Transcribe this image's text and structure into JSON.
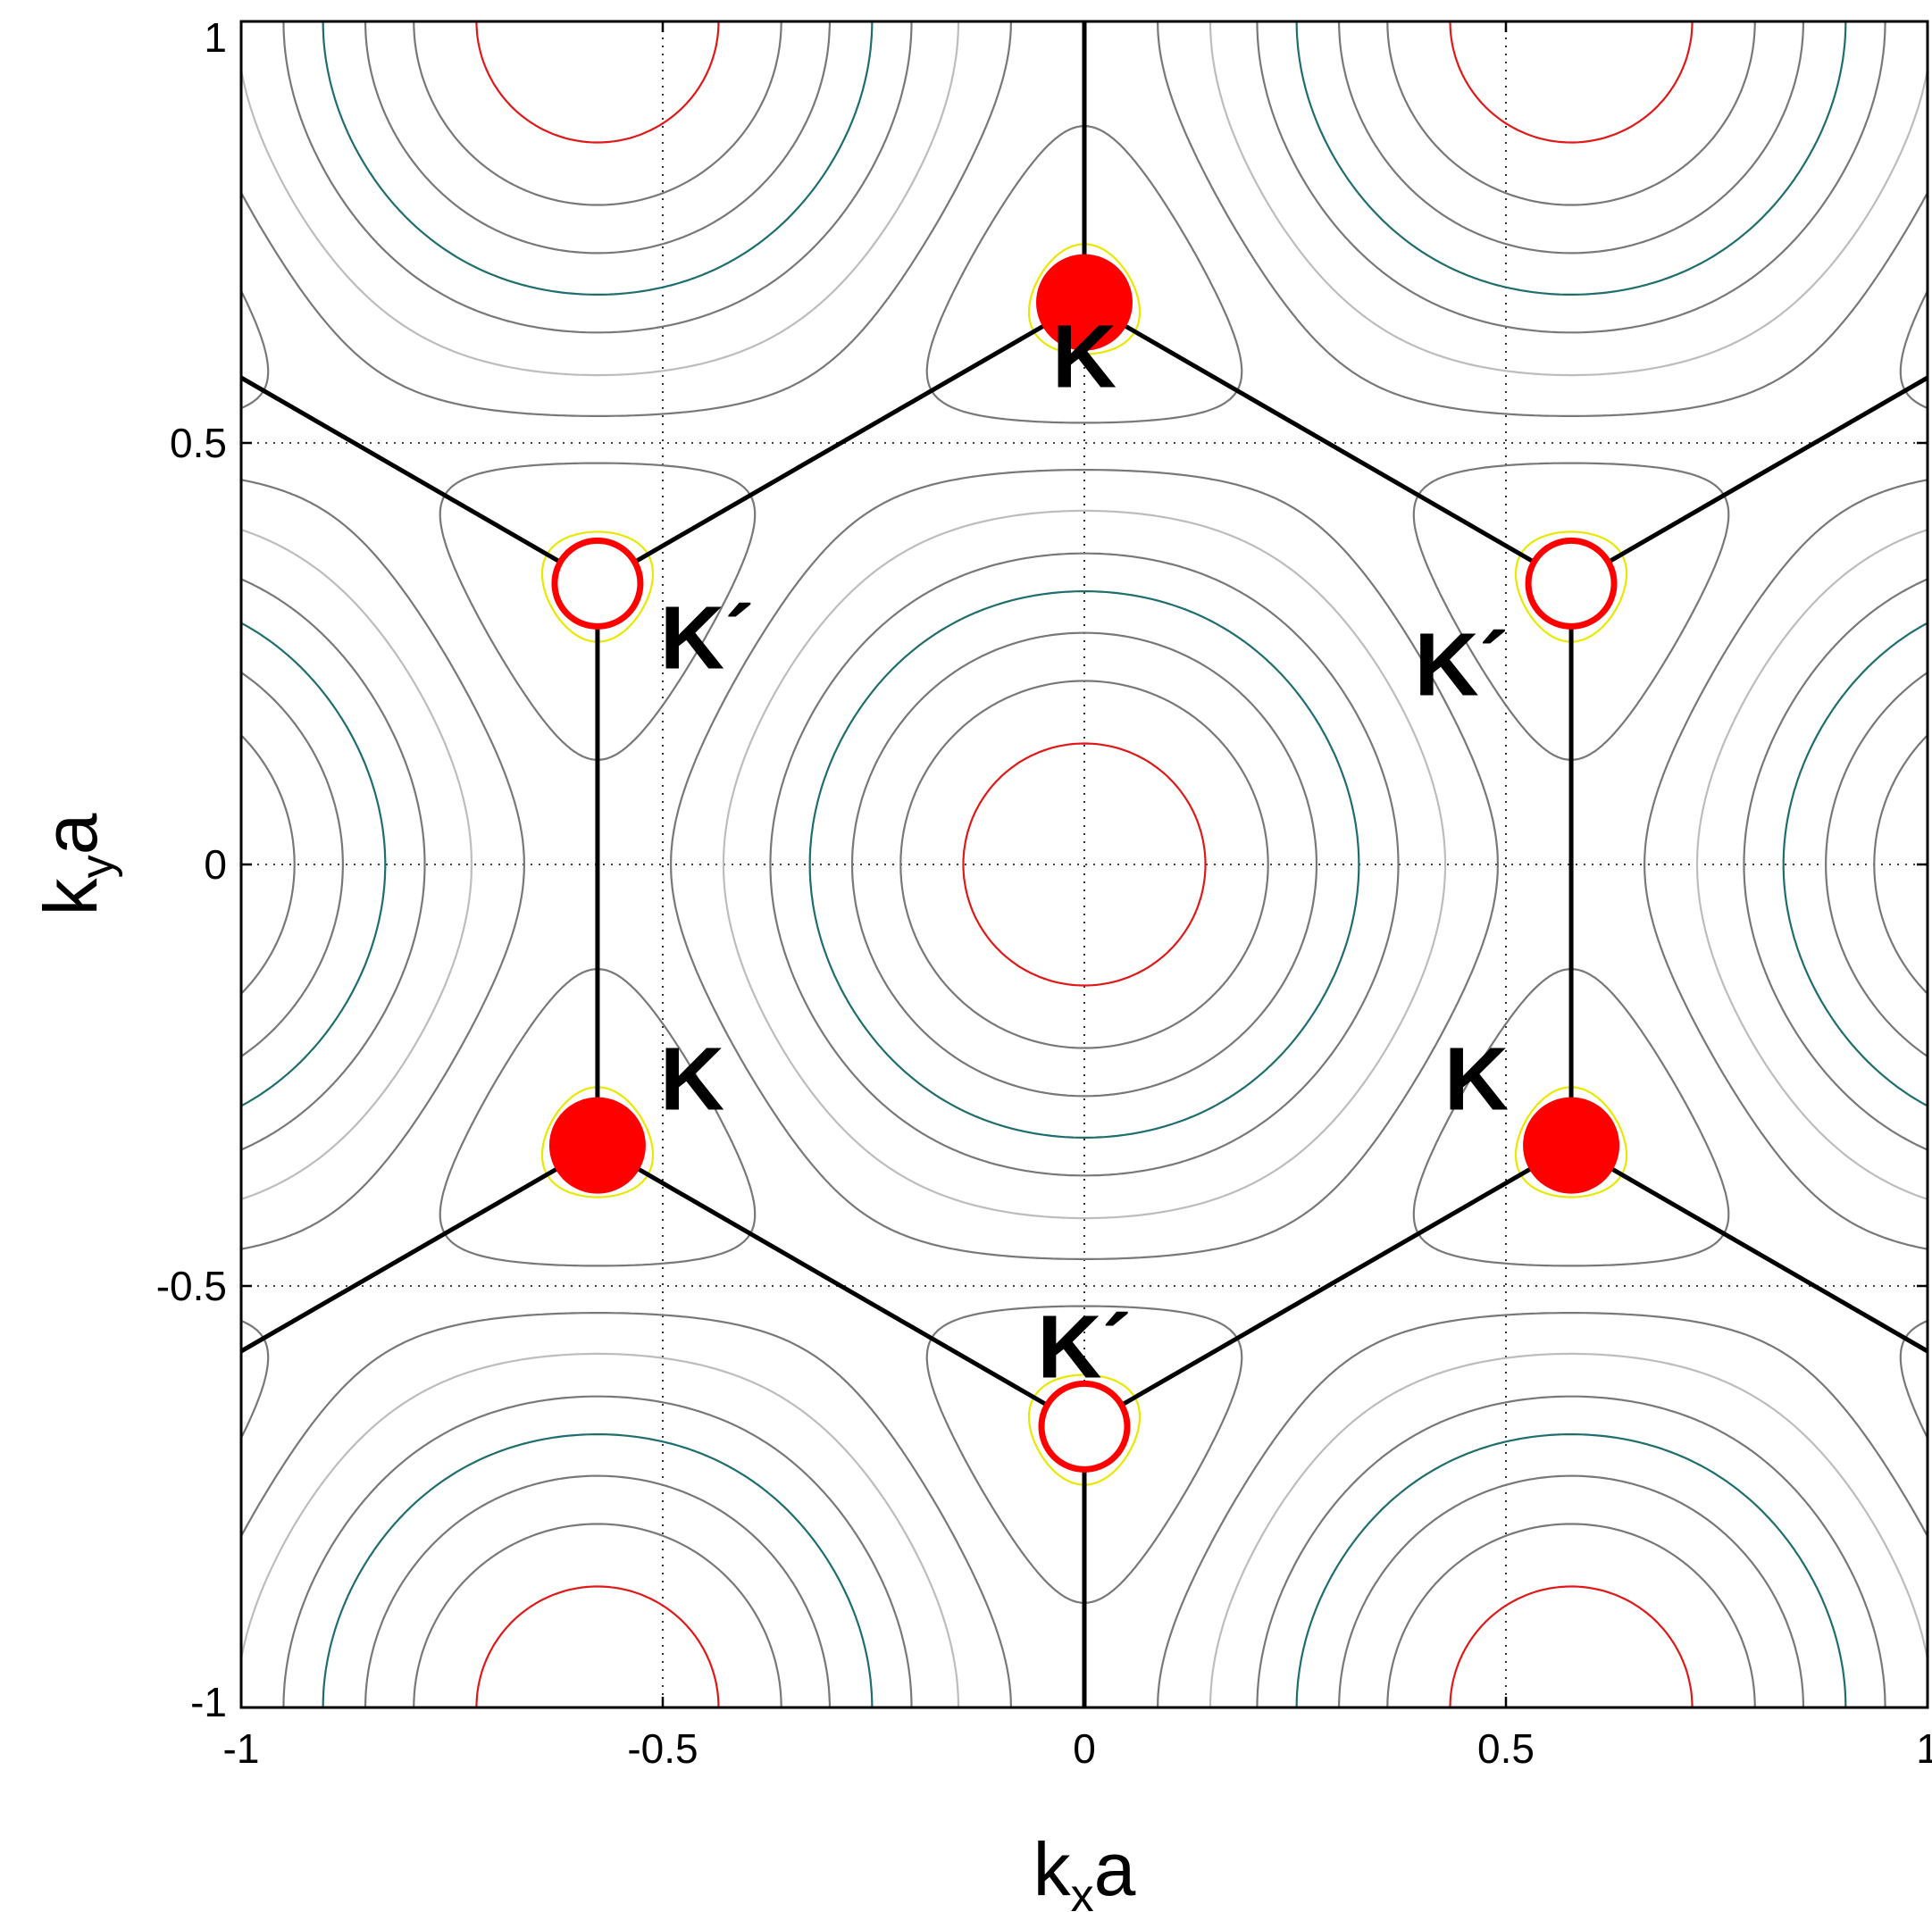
{
  "chart_data": {
    "type": "contour",
    "xlabel": {
      "main": "k",
      "sub": "x",
      "suffix": "a"
    },
    "ylabel": {
      "main": "k",
      "sub": "y",
      "suffix": "a"
    },
    "xlim": [
      -1,
      1
    ],
    "ylim": [
      -1,
      1
    ],
    "xticks": [
      {
        "value": -1,
        "label": "-1"
      },
      {
        "value": -0.5,
        "label": "-0.5"
      },
      {
        "value": 0,
        "label": "0"
      },
      {
        "value": 0.5,
        "label": "0.5"
      },
      {
        "value": 1,
        "label": "1"
      }
    ],
    "yticks": [
      {
        "value": -1,
        "label": "-1"
      },
      {
        "value": -0.5,
        "label": "-0.5"
      },
      {
        "value": 0,
        "label": "0"
      },
      {
        "value": 0.5,
        "label": "0.5"
      },
      {
        "value": 1,
        "label": "1"
      }
    ],
    "grid": {
      "style": "dotted",
      "values": [
        -0.5,
        0,
        0.5
      ]
    },
    "contours": {
      "function": "|1 + exp(i*2pi*a1.k) + exp(i*2pi*a2.k)|, a1=(sqrt3/2,1/2), a2=(sqrt3/2,-1/2)",
      "levels": [
        {
          "value": 2.8,
          "color": "#e01818"
        },
        {
          "value": 2.55,
          "color": "#787878"
        },
        {
          "value": 2.3,
          "color": "#787878"
        },
        {
          "value": 2.05,
          "color": "#1f6e6e"
        },
        {
          "value": 1.8,
          "color": "#787878"
        },
        {
          "value": 1.5,
          "color": "#bdbdbd"
        },
        {
          "value": 1.2,
          "color": "#787878"
        },
        {
          "value": 0.85,
          "color": "#787878"
        },
        {
          "value": 0.35,
          "color": "#e8e800"
        }
      ]
    },
    "brillouin_zone": {
      "vertices": [
        [
          0,
          0.6667
        ],
        [
          0.5774,
          0.3333
        ],
        [
          0.5774,
          -0.3333
        ],
        [
          0,
          -0.6667
        ],
        [
          -0.5774,
          -0.3333
        ],
        [
          -0.5774,
          0.3333
        ]
      ],
      "outer_segments": [
        [
          [
            0,
            0.6667
          ],
          [
            0,
            1
          ]
        ],
        [
          [
            0,
            -0.6667
          ],
          [
            0,
            -1
          ]
        ],
        [
          [
            0.5774,
            0.3333
          ],
          [
            1,
            0.5774
          ]
        ],
        [
          [
            0.5774,
            -0.3333
          ],
          [
            1,
            -0.5774
          ]
        ],
        [
          [
            -0.5774,
            0.3333
          ],
          [
            -1,
            0.5774
          ]
        ],
        [
          [
            -0.5774,
            -0.3333
          ],
          [
            -1,
            -0.5774
          ]
        ]
      ]
    },
    "points": [
      {
        "name": "K",
        "x": 0,
        "y": 0.6667,
        "filled": true,
        "label": "K"
      },
      {
        "name": "K",
        "x": -0.5774,
        "y": -0.3333,
        "filled": true,
        "label": "K"
      },
      {
        "name": "K",
        "x": 0.5774,
        "y": -0.3333,
        "filled": true,
        "label": "K"
      },
      {
        "name": "K'",
        "x": -0.5774,
        "y": 0.3333,
        "filled": false,
        "label": "K´"
      },
      {
        "name": "K'",
        "x": 0.5774,
        "y": 0.3333,
        "filled": false,
        "label": "K´"
      },
      {
        "name": "K'",
        "x": 0,
        "y": -0.6667,
        "filled": false,
        "label": "K´"
      }
    ]
  }
}
